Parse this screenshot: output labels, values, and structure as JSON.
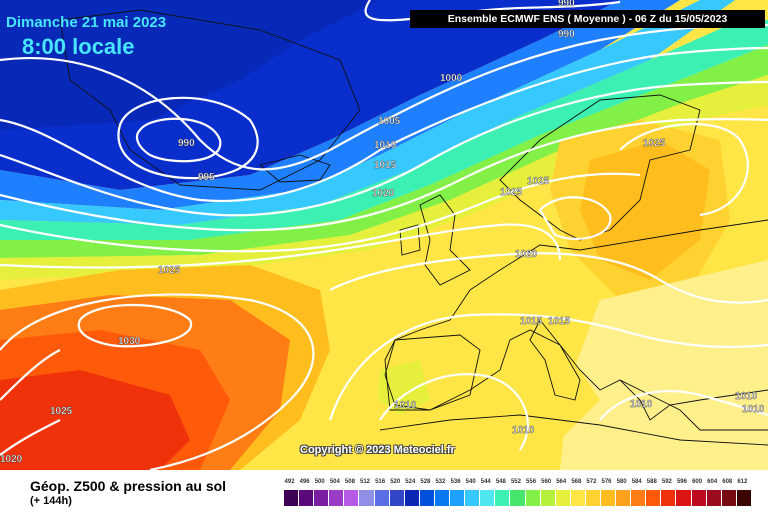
{
  "header": {
    "date": "Dimanche 21 mai 2023",
    "time": "8:00 locale",
    "source": "Ensemble ECMWF ENS  ( Moyenne )  -  06 Z du 15/05/2023"
  },
  "map": {
    "copyright": "Copyright © 2023 Meteociel.fr",
    "isobar_labels": [
      "990",
      "995",
      "1000",
      "1005",
      "1010",
      "1015",
      "1020",
      "1025",
      "1030",
      "1025",
      "1020",
      "990",
      "995",
      "1025",
      "1025",
      "1025",
      "1020",
      "1015",
      "1015",
      "1010",
      "1010",
      "1010",
      "1010",
      "1010"
    ]
  },
  "footer": {
    "title": "Géop. Z500 & pression au sol",
    "lead": "(+ 144h)"
  },
  "legend": {
    "values": [
      "492",
      "496",
      "500",
      "504",
      "508",
      "512",
      "516",
      "520",
      "524",
      "528",
      "532",
      "536",
      "540",
      "544",
      "548",
      "552",
      "556",
      "560",
      "564",
      "568",
      "572",
      "576",
      "580",
      "584",
      "588",
      "592",
      "596",
      "600",
      "604",
      "608",
      "612"
    ],
    "colors": [
      "#3d0055",
      "#5a0a78",
      "#7a1da0",
      "#9a3cc8",
      "#b45ae6",
      "#8f8fe8",
      "#5a6ee6",
      "#3246c8",
      "#0a28b4",
      "#0050dc",
      "#0a78f0",
      "#1ea0ff",
      "#37c8ff",
      "#50e6f0",
      "#3cf0b4",
      "#46e66e",
      "#82f046",
      "#b4f03c",
      "#e6f03c",
      "#ffe646",
      "#ffd232",
      "#ffbe1e",
      "#ffa01e",
      "#ff7d14",
      "#ff5a0a",
      "#f0320a",
      "#dc1414",
      "#be0a1e",
      "#9b0a1e",
      "#780a14",
      "#3c0505"
    ]
  }
}
